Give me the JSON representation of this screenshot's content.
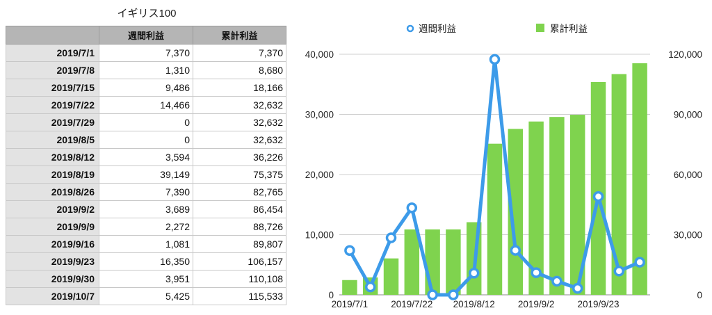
{
  "table": {
    "title": "イギリス100",
    "headers": [
      "",
      "週間利益",
      "累計利益"
    ],
    "rows": [
      [
        "2019/7/1",
        "7,370",
        "7,370"
      ],
      [
        "2019/7/8",
        "1,310",
        "8,680"
      ],
      [
        "2019/7/15",
        "9,486",
        "18,166"
      ],
      [
        "2019/7/22",
        "14,466",
        "32,632"
      ],
      [
        "2019/7/29",
        "0",
        "32,632"
      ],
      [
        "2019/8/5",
        "0",
        "32,632"
      ],
      [
        "2019/8/12",
        "3,594",
        "36,226"
      ],
      [
        "2019/8/19",
        "39,149",
        "75,375"
      ],
      [
        "2019/8/26",
        "7,390",
        "82,765"
      ],
      [
        "2019/9/2",
        "3,689",
        "86,454"
      ],
      [
        "2019/9/9",
        "2,272",
        "88,726"
      ],
      [
        "2019/9/16",
        "1,081",
        "89,807"
      ],
      [
        "2019/9/23",
        "16,350",
        "106,157"
      ],
      [
        "2019/9/30",
        "3,951",
        "110,108"
      ],
      [
        "2019/10/7",
        "5,425",
        "115,533"
      ]
    ]
  },
  "chart_data": {
    "type": "bar",
    "categories": [
      "2019/7/1",
      "2019/7/8",
      "2019/7/15",
      "2019/7/22",
      "2019/7/29",
      "2019/8/5",
      "2019/8/12",
      "2019/8/19",
      "2019/8/26",
      "2019/9/2",
      "2019/9/9",
      "2019/9/16",
      "2019/9/23",
      "2019/9/30",
      "2019/10/7"
    ],
    "x_tick_labels": [
      "2019/7/1",
      "2019/7/22",
      "2019/8/12",
      "2019/9/2",
      "2019/9/23"
    ],
    "x_tick_indices": [
      0,
      3,
      6,
      9,
      12
    ],
    "series": [
      {
        "name": "週間利益",
        "type": "line",
        "axis": "left",
        "color": "#3d9be9",
        "values": [
          7370,
          1310,
          9486,
          14466,
          0,
          0,
          3594,
          39149,
          7390,
          3689,
          2272,
          1081,
          16350,
          3951,
          5425
        ]
      },
      {
        "name": "累計利益",
        "type": "bar",
        "axis": "right",
        "color": "#7fd34e",
        "values": [
          7370,
          8680,
          18166,
          32632,
          32632,
          32632,
          36226,
          75375,
          82765,
          86454,
          88726,
          89807,
          106157,
          110108,
          115533
        ]
      }
    ],
    "y_left": {
      "range": [
        0,
        40000
      ],
      "ticks": [
        "0",
        "10,000",
        "20,000",
        "30,000",
        "40,000"
      ]
    },
    "y_right": {
      "range": [
        0,
        120000
      ],
      "ticks": [
        "0",
        "30,000",
        "60,000",
        "90,000",
        "120,000"
      ]
    },
    "legend_position": "top-center",
    "grid": "horizontal"
  }
}
